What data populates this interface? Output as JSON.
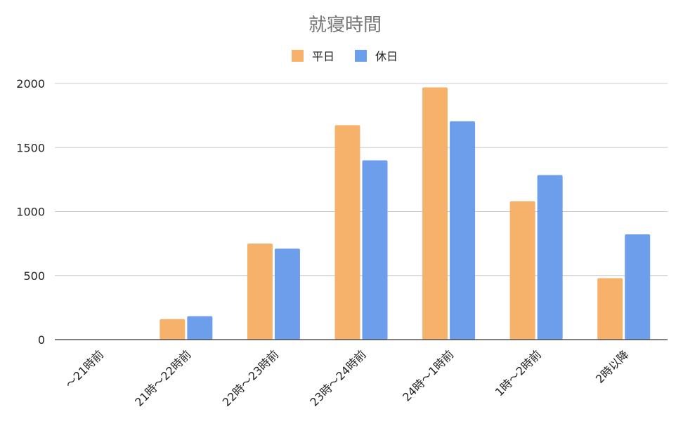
{
  "chart_data": {
    "type": "bar",
    "title": "就寝時間",
    "xlabel": "",
    "ylabel": "",
    "categories": [
      "〜21時前",
      "21時〜22時前",
      "22時〜23時前",
      "23時〜24時前",
      "24時〜1時前",
      "1時〜2時前",
      "2時以降"
    ],
    "series": [
      {
        "name": "平日",
        "color": "#f6b26b",
        "values": [
          0,
          160,
          750,
          1675,
          1970,
          1080,
          480
        ]
      },
      {
        "name": "休日",
        "color": "#6d9eeb",
        "values": [
          0,
          183,
          710,
          1400,
          1705,
          1285,
          822
        ]
      }
    ],
    "ylim": [
      0,
      2000
    ],
    "yticks": [
      0,
      500,
      1000,
      1500,
      2000
    ],
    "grid": true,
    "legend_position": "top-center"
  }
}
